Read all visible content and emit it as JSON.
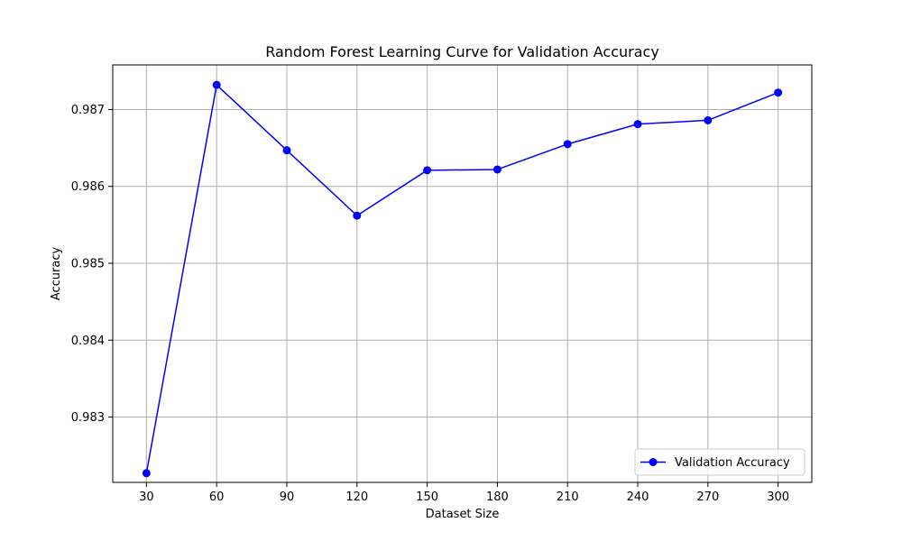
{
  "chart_data": {
    "type": "line",
    "title": "Random Forest Learning Curve for Validation Accuracy",
    "xlabel": "Dataset Size",
    "ylabel": "Accuracy",
    "x": [
      30,
      60,
      90,
      120,
      150,
      180,
      210,
      240,
      270,
      300
    ],
    "x_ticks": [
      "30",
      "60",
      "90",
      "120",
      "150",
      "180",
      "210",
      "240",
      "270",
      "300"
    ],
    "y_ticks": [
      "0.983",
      "0.984",
      "0.985",
      "0.986",
      "0.987"
    ],
    "y_tick_values": [
      0.983,
      0.984,
      0.985,
      0.986,
      0.987
    ],
    "xlim": [
      15.6,
      314.4
    ],
    "ylim": [
      0.98215,
      0.98758
    ],
    "grid": true,
    "legend_position": "lower-right",
    "series": [
      {
        "name": "Validation Accuracy",
        "color": "#0000ff",
        "marker": "circle",
        "values": [
          0.98227,
          0.98732,
          0.98647,
          0.98562,
          0.98621,
          0.98622,
          0.98655,
          0.98681,
          0.98686,
          0.98722
        ]
      }
    ]
  }
}
